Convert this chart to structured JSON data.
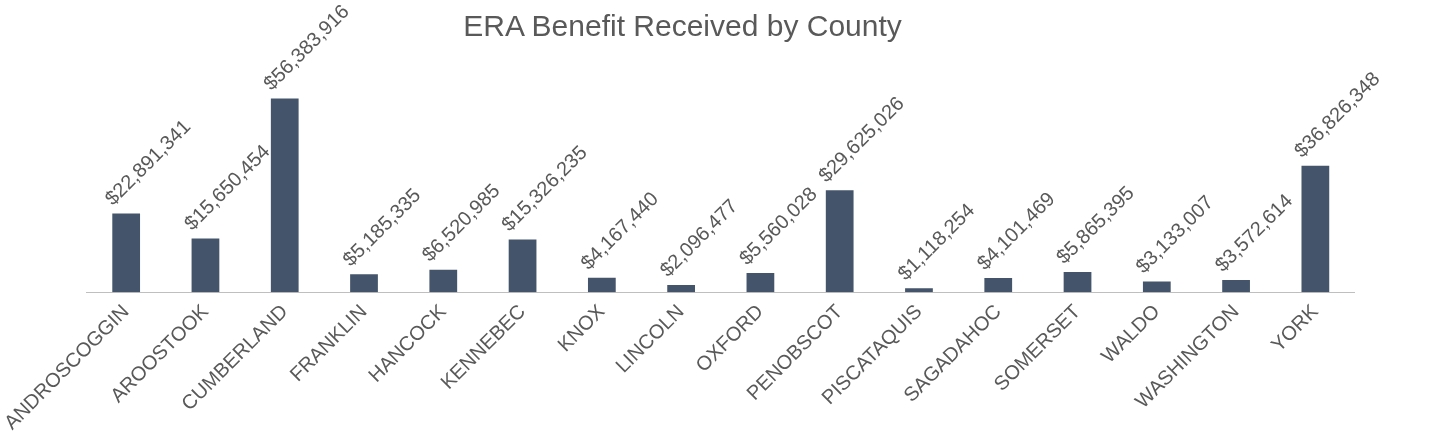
{
  "chart_data": {
    "type": "bar",
    "title": "ERA Benefit Received by County",
    "categories": [
      "ANDROSCOGGIN",
      "AROOSTOOK",
      "CUMBERLAND",
      "FRANKLIN",
      "HANCOCK",
      "KENNEBEC",
      "KNOX",
      "LINCOLN",
      "OXFORD",
      "PENOBSCOT",
      "PISCATAQUIS",
      "SAGADAHOC",
      "SOMERSET",
      "WALDO",
      "WASHINGTON",
      "YORK"
    ],
    "values": [
      22891341,
      15650454,
      56383916,
      5185335,
      6520985,
      15326235,
      4167440,
      2096477,
      5560028,
      29625026,
      1118254,
      4101469,
      5865395,
      3133007,
      3572614,
      36826348
    ],
    "value_labels": [
      "$22,891,341",
      "$15,650,454",
      "$56,383,916",
      "$5,185,335",
      "$6,520,985",
      "$15,326,235",
      "$4,167,440",
      "$2,096,477",
      "$5,560,028",
      "$29,625,026",
      "$1,118,254",
      "$4,101,469",
      "$5,865,395",
      "$3,133,007",
      "$3,572,614",
      "$36,826,348"
    ],
    "color": "#44546a",
    "grid": false,
    "legend": false
  }
}
